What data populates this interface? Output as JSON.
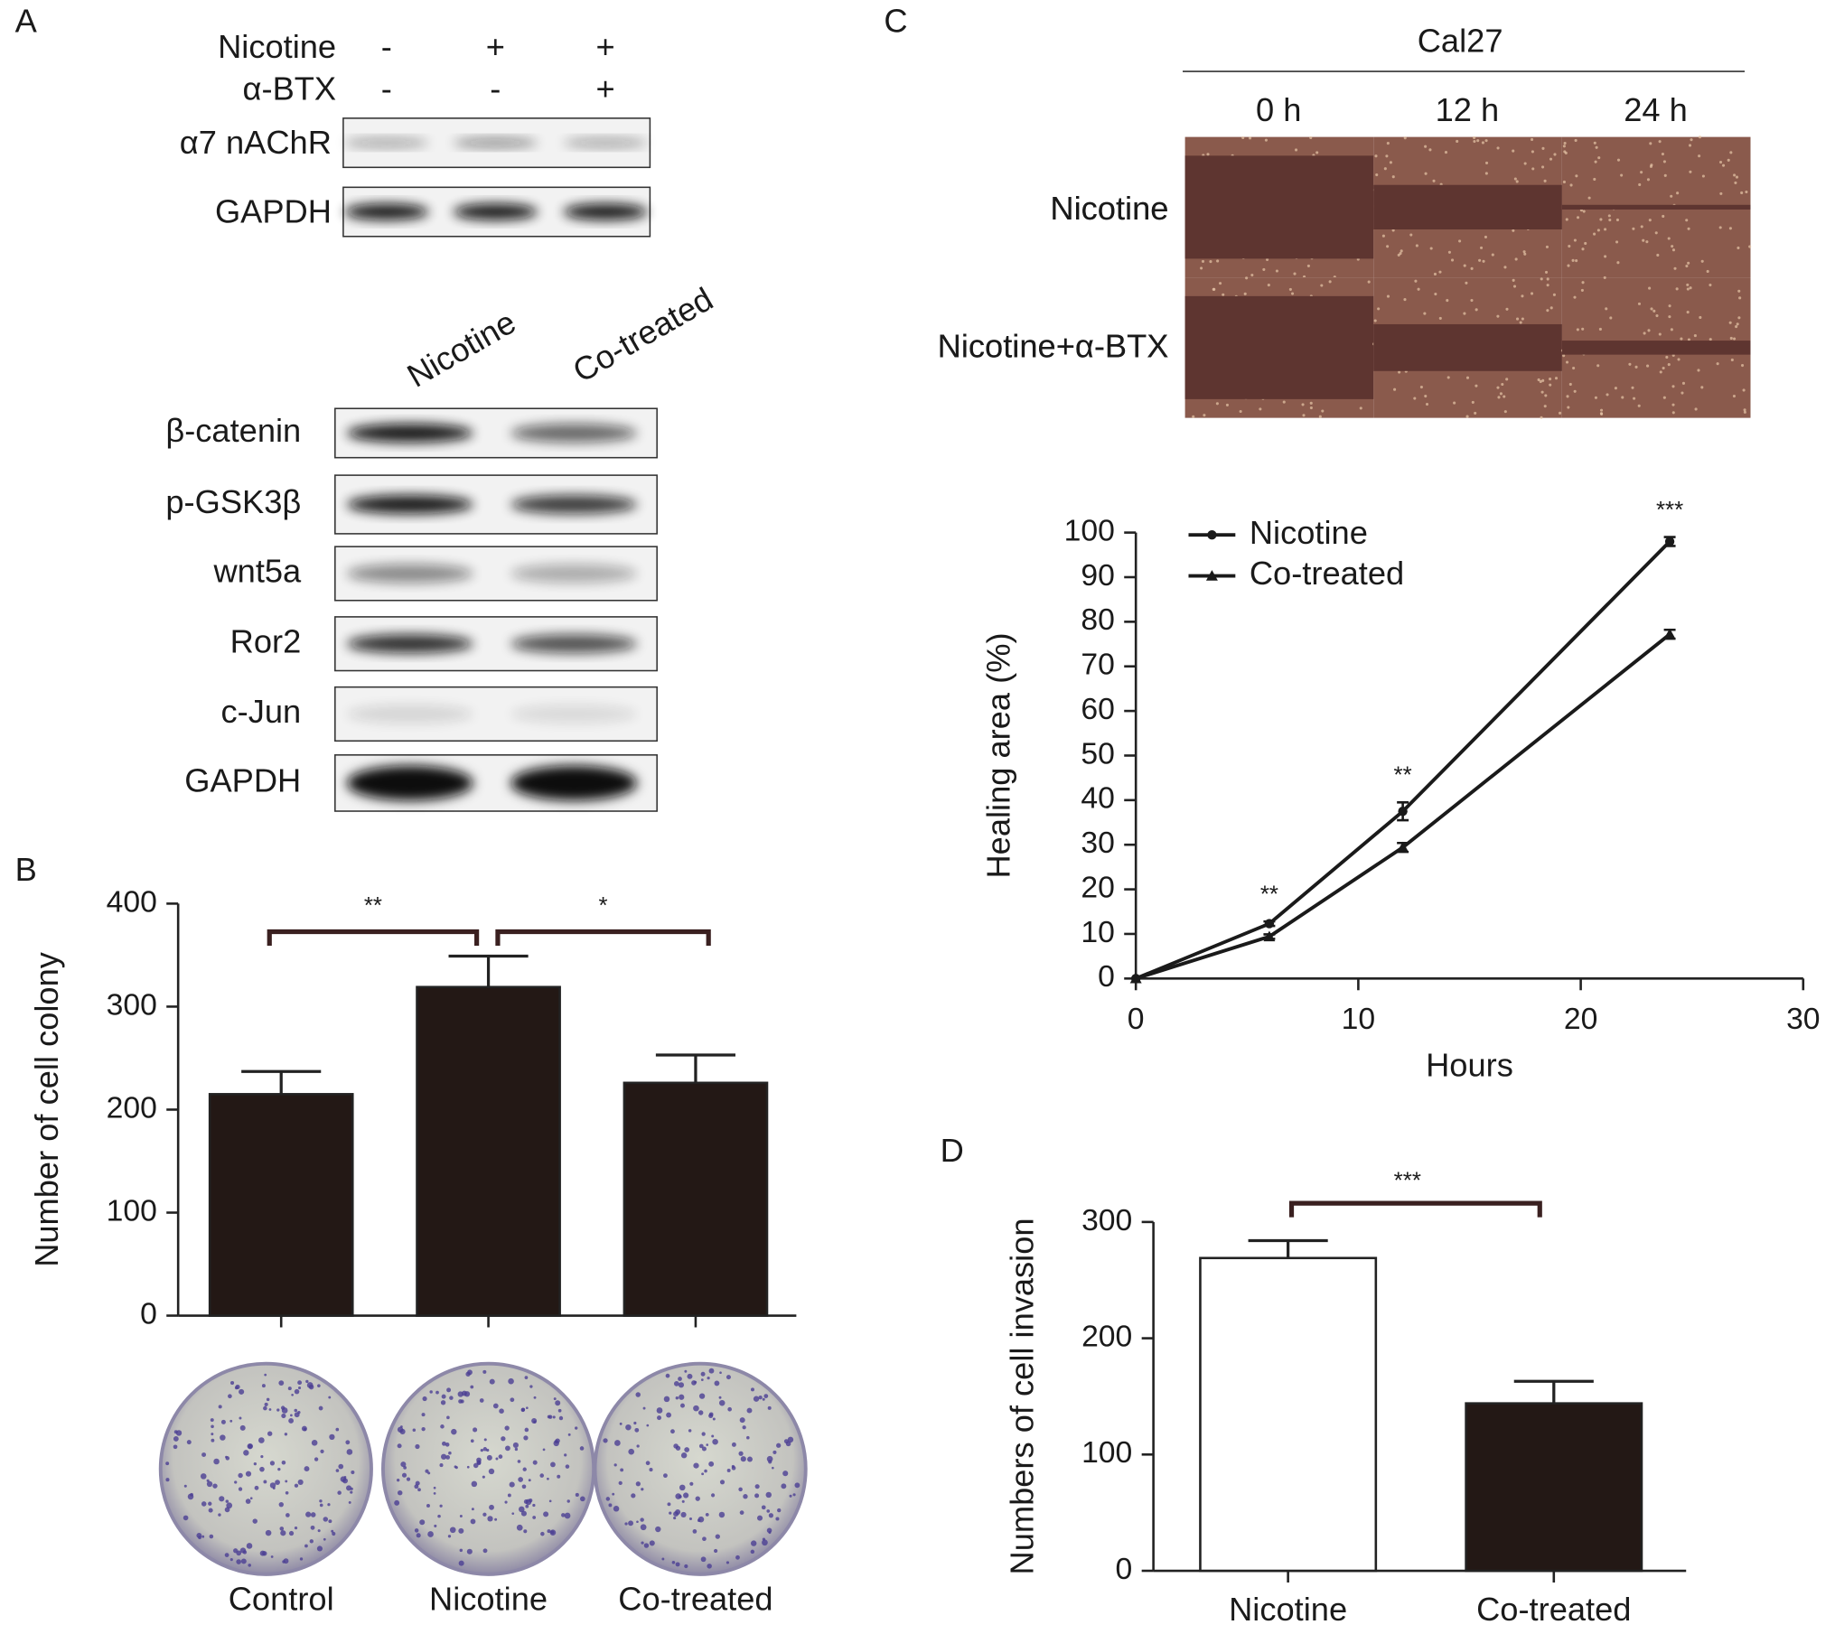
{
  "panel_labels": [
    "A",
    "B",
    "C",
    "D"
  ],
  "blot_top": {
    "treatments": [
      {
        "name": "Nicotine",
        "signs": [
          "-",
          "+",
          "+"
        ]
      },
      {
        "name": "α-BTX",
        "signs": [
          "-",
          "-",
          "+"
        ]
      }
    ],
    "rows": [
      "α7 nAChR",
      "GAPDH"
    ]
  },
  "blot_bottom": {
    "lanes": [
      "Nicotine",
      "Co-treated"
    ],
    "rows": [
      "β-catenin",
      "p-GSK3β",
      "wnt5a",
      "Ror2",
      "c-Jun",
      "GAPDH"
    ]
  },
  "scratch": {
    "title": "Cal27",
    "times": [
      "0 h",
      "12 h",
      "24 h"
    ],
    "rows": [
      "Nicotine",
      "Nicotine+α-BTX"
    ]
  },
  "chart_data": [
    {
      "type": "bar",
      "ylabel": "Number of cell colony",
      "categories": [
        "Control",
        "Nicotine",
        "Co-treated"
      ],
      "values": [
        215,
        319,
        226
      ],
      "errors": [
        22,
        30,
        27
      ],
      "colors": [
        "#231815",
        "#231815",
        "#231815"
      ],
      "ylim": [
        0,
        400
      ],
      "yticks": [
        0,
        100,
        200,
        300,
        400
      ],
      "annotations": [
        "**",
        "*"
      ]
    },
    {
      "type": "line",
      "xlabel": "Hours",
      "ylabel": "Healing area (%)",
      "x": [
        0,
        6,
        12,
        24
      ],
      "series": [
        {
          "name": "Nicotine",
          "color": "#1a1a1a",
          "marker": "circle",
          "values": [
            0,
            12.3,
            37.5,
            98
          ],
          "errors": [
            0,
            0.5,
            2,
            1
          ]
        },
        {
          "name": "Co-treated",
          "color": "#1a1a1a",
          "marker": "triangle",
          "values": [
            0,
            9.4,
            29.4,
            77.2
          ],
          "errors": [
            0,
            0.5,
            1,
            1
          ]
        }
      ],
      "xlim": [
        0,
        30
      ],
      "xticks": [
        0,
        10,
        20,
        30
      ],
      "ylim": [
        0,
        100
      ],
      "yticks": [
        0,
        10,
        20,
        30,
        40,
        50,
        60,
        70,
        80,
        90,
        100
      ],
      "legend": "upper-left",
      "annotations": [
        "**",
        "**",
        "***"
      ]
    },
    {
      "type": "bar",
      "ylabel": "Numbers of cell invasion",
      "categories": [
        "Nicotine",
        "Co-treated"
      ],
      "values": [
        269,
        144
      ],
      "errors": [
        15,
        19
      ],
      "colors": [
        "#ffffff",
        "#231815"
      ],
      "ylim": [
        0,
        300
      ],
      "yticks": [
        0,
        100,
        200,
        300
      ],
      "annotations": [
        "***"
      ]
    }
  ]
}
